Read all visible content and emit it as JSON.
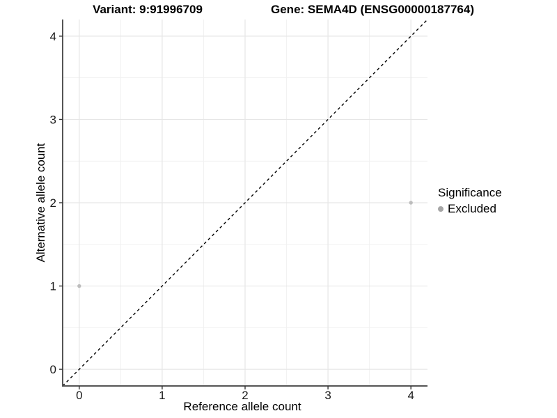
{
  "titles": {
    "variant": "Variant: 9:91996709",
    "gene": "Gene: SEMA4D (ENSG00000187764)"
  },
  "chart_data": {
    "type": "scatter",
    "xlabel": "Reference allele count",
    "ylabel": "Alternative allele count",
    "xlim": [
      -0.2,
      4.2
    ],
    "ylim": [
      -0.2,
      4.2
    ],
    "xticks": [
      0,
      1,
      2,
      3,
      4
    ],
    "yticks": [
      0,
      1,
      2,
      3,
      4
    ],
    "xticks_minor": [
      0.5,
      1.5,
      2.5,
      3.5
    ],
    "yticks_minor": [
      0.5,
      1.5,
      2.5,
      3.5
    ],
    "grid": true,
    "identity_line": {
      "style": "dashed",
      "color": "#000000",
      "from": [
        -0.2,
        -0.2
      ],
      "to": [
        4.2,
        4.2
      ]
    },
    "points": [
      {
        "x": 0,
        "y": 1,
        "significance": "Excluded"
      },
      {
        "x": 4,
        "y": 2,
        "significance": "Excluded"
      }
    ],
    "point_color": "#bdbdbd",
    "legend": {
      "title": "Significance",
      "position": "right",
      "items": [
        {
          "label": "Excluded",
          "color": "#a6a6a6"
        }
      ]
    }
  },
  "theme": {
    "background": "#ffffff",
    "grid_major": "#e6e6e6",
    "grid_minor": "#f1f1f1",
    "axis_line": "#555555",
    "tick_mark": "#333333",
    "tick_label": "#1a1a1a",
    "text": "#000000"
  }
}
